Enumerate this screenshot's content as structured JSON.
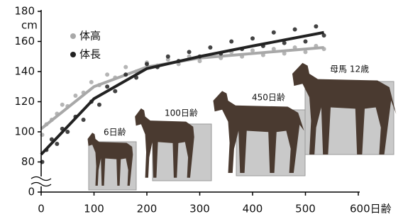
{
  "chart_data": {
    "type": "scatter",
    "y_label": "cm",
    "x": [
      2,
      10,
      20,
      30,
      40,
      50,
      65,
      80,
      95,
      110,
      125,
      140,
      160,
      180,
      200,
      220,
      240,
      260,
      280,
      300,
      320,
      340,
      360,
      380,
      400,
      420,
      440,
      460,
      480,
      500,
      520,
      535
    ],
    "series": [
      {
        "name": "体高",
        "color": "#a8a8a8",
        "values": [
          98,
          105,
          108,
          112,
          118,
          117,
          124,
          126,
          133,
          131,
          138,
          136,
          143,
          140,
          146,
          144,
          148,
          145,
          150,
          147,
          151,
          149,
          153,
          150,
          154,
          151,
          155,
          152,
          156,
          153,
          157,
          155
        ],
        "trend": [
          102,
          130,
          143,
          149,
          152,
          156
        ]
      },
      {
        "name": "体長",
        "color": "#222222",
        "values": [
          80,
          88,
          95,
          92,
          102,
          100,
          110,
          108,
          120,
          118,
          130,
          127,
          138,
          136,
          145,
          143,
          150,
          147,
          153,
          150,
          156,
          152,
          160,
          155,
          162,
          157,
          166,
          159,
          168,
          160,
          170,
          164
        ],
        "trend": [
          85,
          122,
          142,
          150,
          157,
          166
        ]
      }
    ],
    "trend_x": [
      0,
      100,
      200,
      300,
      400,
      535
    ],
    "xlim": [
      0,
      600
    ],
    "xticks": [
      0,
      100,
      200,
      300,
      400,
      500,
      {
        "value": 600,
        "label": "600日齢"
      }
    ],
    "ylim": [
      60,
      180
    ],
    "yticks": [
      0,
      80,
      100,
      120,
      140,
      160,
      180
    ],
    "y_break": true,
    "annotations": [
      "6日齢",
      "100日齢",
      "450日齢",
      "母馬 12歳"
    ]
  }
}
